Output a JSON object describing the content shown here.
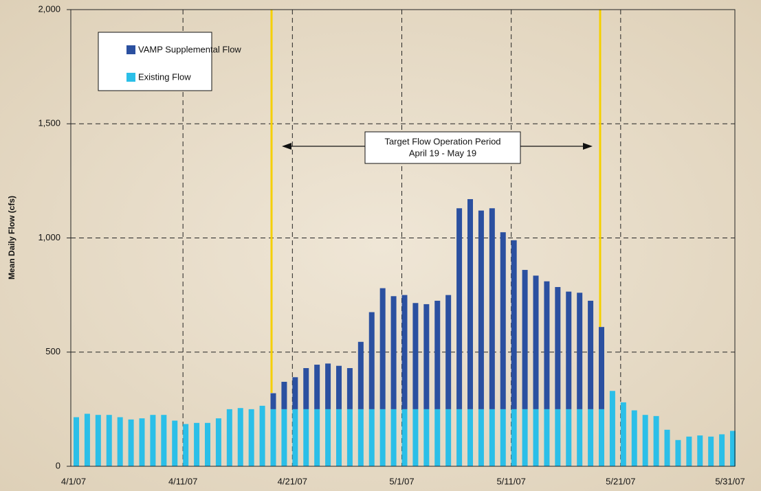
{
  "chart_data": {
    "type": "stacked-bar",
    "y_label": "Mean Daily Flow (cfs)",
    "annotation": [
      "Target Flow Operation Period",
      "April 19 - May 19"
    ],
    "categories": [
      "4/1/07",
      null,
      null,
      null,
      null,
      null,
      null,
      null,
      null,
      null,
      "4/11/07",
      null,
      null,
      null,
      null,
      null,
      null,
      null,
      null,
      null,
      "4/21/07",
      null,
      null,
      null,
      null,
      null,
      null,
      null,
      null,
      null,
      "5/1/07",
      null,
      null,
      null,
      null,
      null,
      null,
      null,
      null,
      null,
      "5/11/07",
      null,
      null,
      null,
      null,
      null,
      null,
      null,
      null,
      null,
      "5/21/07",
      null,
      null,
      null,
      null,
      null,
      null,
      null,
      null,
      null,
      "5/31/07"
    ],
    "series": [
      {
        "name": "Existing Flow",
        "color": "#2bbfe8",
        "values": [
          215,
          230,
          225,
          225,
          215,
          205,
          210,
          225,
          225,
          200,
          185,
          190,
          190,
          210,
          250,
          255,
          250,
          265,
          250,
          250,
          250,
          250,
          250,
          250,
          250,
          250,
          250,
          250,
          250,
          250,
          250,
          250,
          250,
          250,
          250,
          250,
          250,
          250,
          250,
          250,
          250,
          250,
          250,
          250,
          250,
          250,
          250,
          250,
          250,
          330,
          280,
          245,
          225,
          220,
          160,
          115,
          130,
          135,
          130,
          140,
          155
        ]
      },
      {
        "name": "VAMP Supplemental Flow",
        "color": "#2b50a0",
        "values": [
          0,
          0,
          0,
          0,
          0,
          0,
          0,
          0,
          0,
          0,
          0,
          0,
          0,
          0,
          0,
          0,
          0,
          0,
          70,
          120,
          140,
          180,
          195,
          200,
          190,
          180,
          295,
          425,
          530,
          495,
          500,
          465,
          460,
          475,
          500,
          880,
          920,
          870,
          880,
          775,
          740,
          610,
          585,
          560,
          535,
          515,
          510,
          475,
          360,
          0,
          0,
          0,
          0,
          0,
          0,
          0,
          0,
          0,
          0,
          0,
          0
        ]
      }
    ],
    "ylim": [
      0,
      2000
    ],
    "yticks": [
      0,
      500,
      {
        "value": 1000,
        "label": "1,000"
      },
      {
        "value": 1500,
        "label": "1,500"
      },
      {
        "value": 2000,
        "label": "2,000"
      }
    ],
    "grid": true
  }
}
